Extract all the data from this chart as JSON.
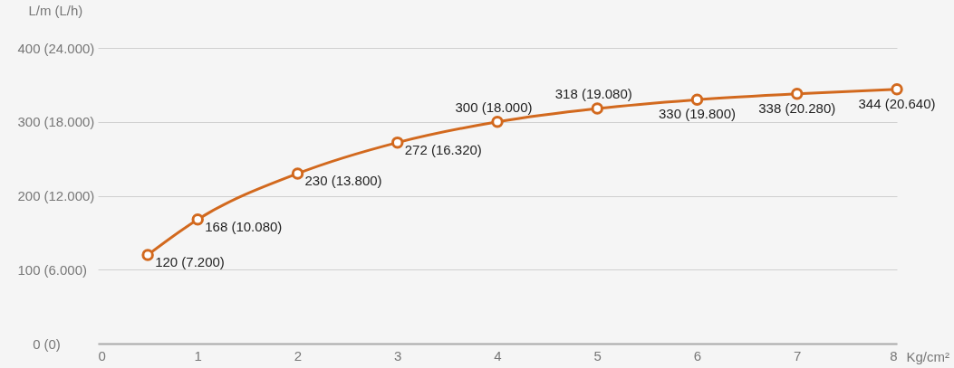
{
  "chart_data": {
    "type": "line",
    "ylabel": "L/m",
    "y2label": "(L/h)",
    "xlabel": "Kg/cm²",
    "x": [
      0.5,
      1,
      2,
      3,
      4,
      5,
      6,
      7,
      8
    ],
    "series": [
      {
        "color": "#d2691e",
        "values": [
          120,
          168,
          230,
          272,
          300,
          318,
          330,
          338,
          344
        ]
      }
    ],
    "value_labels": [
      "120 (7.200)",
      "168 (10.080)",
      "230 (13.800)",
      "272 (16.320)",
      "300 (18.000)",
      "318 (19.080)",
      "330 (19.800)",
      "338 (20.280)",
      "344 (20.640)"
    ],
    "xlim": [
      0,
      8
    ],
    "xticks": [
      0,
      1,
      2,
      3,
      4,
      5,
      6,
      7,
      8
    ],
    "ylim": [
      0,
      400
    ],
    "yticks": [
      0,
      100,
      200,
      300,
      400
    ],
    "y2lim": [
      0,
      24000
    ],
    "y2ticks": [
      {
        "value": 0,
        "label": "(0)"
      },
      {
        "value": 6000,
        "label": "(6.000)"
      },
      {
        "value": 12000,
        "label": "(12.000)"
      },
      {
        "value": 18000,
        "label": "(18.000)"
      },
      {
        "value": 24000,
        "label": "(24.000)"
      }
    ],
    "grid": "y",
    "marker": "circle",
    "line_style": "solid"
  }
}
